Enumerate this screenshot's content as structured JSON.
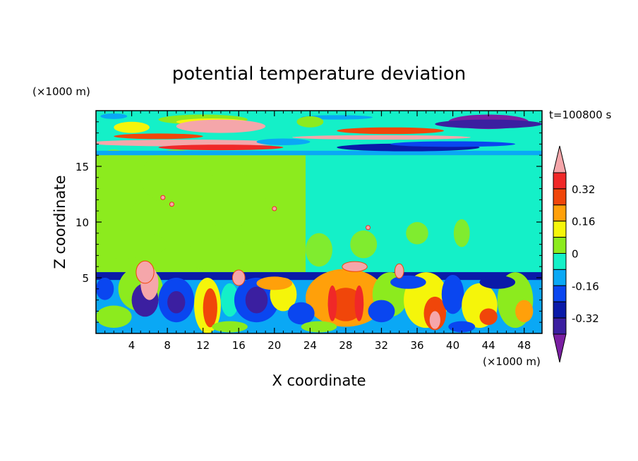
{
  "chart_data": {
    "type": "heatmap",
    "title": "potential temperature deviation",
    "xlabel": "X coordinate",
    "ylabel": "Z coordinate",
    "x_unit_label": "(×1000 m)",
    "y_unit_label": "(×1000 m)",
    "time_label": "t=100800 s",
    "xlim": [
      0,
      50
    ],
    "ylim": [
      0,
      20
    ],
    "x_ticks": [
      4,
      8,
      12,
      16,
      20,
      24,
      28,
      32,
      36,
      40,
      44,
      48
    ],
    "y_ticks": [
      5,
      10,
      15
    ],
    "colorbar": {
      "levels": [
        -0.4,
        -0.32,
        -0.24,
        -0.16,
        -0.08,
        0,
        0.08,
        0.16,
        0.24,
        0.32,
        0.4
      ],
      "tick_labels": [
        "0.32",
        "0.16",
        "0",
        "-0.16",
        "-0.32"
      ],
      "tick_values": [
        0.32,
        0.16,
        0,
        -0.16,
        -0.32
      ],
      "colors": [
        "#7a1fa2",
        "#3b1fa0",
        "#0a1aa8",
        "#0a46f0",
        "#0aa8f5",
        "#14f0c8",
        "#8ceb1e",
        "#f5f50a",
        "#ffa00a",
        "#f0460a",
        "#f02828",
        "#f5a6aa"
      ],
      "extends": "both"
    },
    "bands": [
      {
        "z": [
          0,
          5.5
        ],
        "description": "turbulent boundary layer"
      },
      {
        "z": [
          5.5,
          16
        ],
        "value": 0.04
      },
      {
        "z": [
          16,
          20
        ],
        "description": "layered upper region"
      }
    ]
  }
}
